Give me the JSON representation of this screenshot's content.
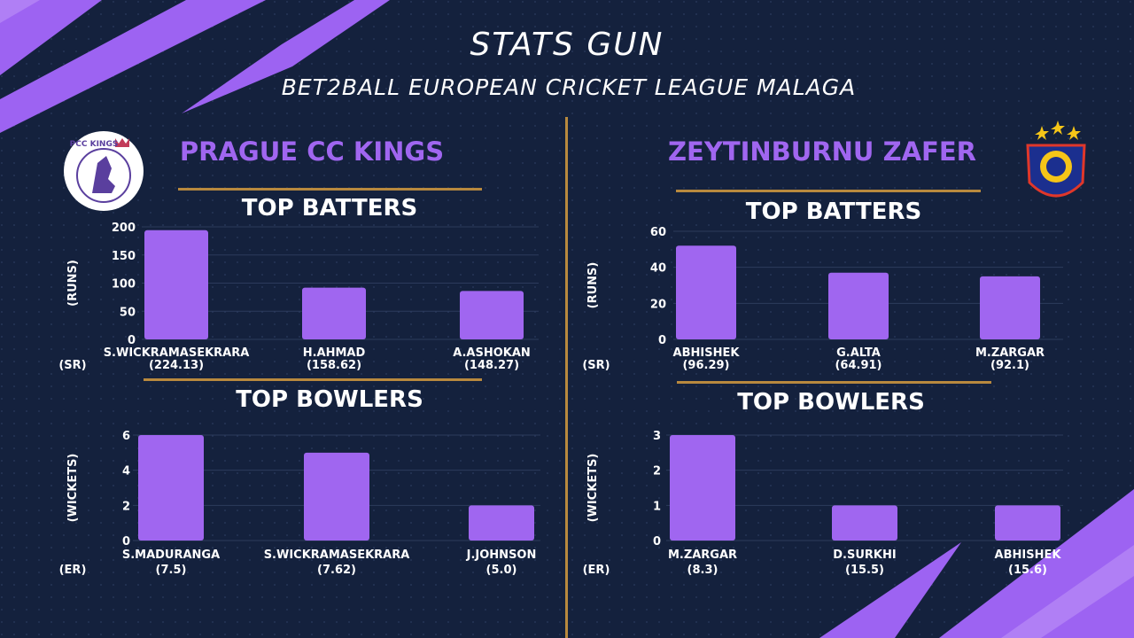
{
  "title": "STATS GUN",
  "subtitle": "BET2BALL EUROPEAN CRICKET LEAGUE MALAGA",
  "colors": {
    "background": "#14213d",
    "accent": "#a066f0",
    "divider": "#b8893e",
    "bar": "#a066f0"
  },
  "icons": {
    "left_logo": "pcc-kings-crest-icon",
    "right_logo": "zeytinburnu-zafer-crest-icon"
  },
  "left_logo_text": "PCC KINGS",
  "teams": [
    {
      "name": "PRAGUE CC KINGS"
    },
    {
      "name": "ZEYTINBURNU ZAFER"
    }
  ],
  "sections": {
    "batters": "TOP BATTERS",
    "bowlers": "TOP BOWLERS"
  },
  "chart_data": [
    {
      "type": "bar",
      "team": "PRAGUE CC KINGS",
      "title": "TOP BATTERS",
      "ylabel": "(RUNS)",
      "secondary_label": "(SR)",
      "categories": [
        "S.WICKRAMASEKRARA",
        "H.AHMAD",
        "A.ASHOKAN"
      ],
      "values": [
        194,
        92,
        86
      ],
      "secondary": [
        "(224.13)",
        "(158.62)",
        "(148.27)"
      ],
      "ylim": [
        0,
        200
      ],
      "yticks": [
        0,
        50,
        100,
        150,
        200
      ],
      "grid": true
    },
    {
      "type": "bar",
      "team": "PRAGUE CC KINGS",
      "title": "TOP BOWLERS",
      "ylabel": "(WICKETS)",
      "secondary_label": "(ER)",
      "categories": [
        "S.MADURANGA",
        "S.WICKRAMASEKRARA",
        "J.JOHNSON"
      ],
      "values": [
        6,
        5,
        2
      ],
      "secondary": [
        "(7.5)",
        "(7.62)",
        "(5.0)"
      ],
      "ylim": [
        0,
        6
      ],
      "yticks": [
        0,
        2,
        4,
        6
      ],
      "grid": true
    },
    {
      "type": "bar",
      "team": "ZEYTINBURNU ZAFER",
      "title": "TOP BATTERS",
      "ylabel": "(RUNS)",
      "secondary_label": "(SR)",
      "categories": [
        "ABHISHEK",
        "G.ALTA",
        "M.ZARGAR"
      ],
      "values": [
        52,
        37,
        35
      ],
      "secondary": [
        "(96.29)",
        "(64.91)",
        "(92.1)"
      ],
      "ylim": [
        0,
        60
      ],
      "yticks": [
        0,
        20,
        40,
        60
      ],
      "grid": true
    },
    {
      "type": "bar",
      "team": "ZEYTINBURNU ZAFER",
      "title": "TOP BOWLERS",
      "ylabel": "(WICKETS)",
      "secondary_label": "(ER)",
      "categories": [
        "M.ZARGAR",
        "D.SURKHI",
        "ABHISHEK"
      ],
      "values": [
        3,
        1,
        1
      ],
      "secondary": [
        "(8.3)",
        "(15.5)",
        "(15.6)"
      ],
      "ylim": [
        0,
        3
      ],
      "yticks": [
        0,
        1,
        2,
        3
      ],
      "grid": true
    }
  ]
}
